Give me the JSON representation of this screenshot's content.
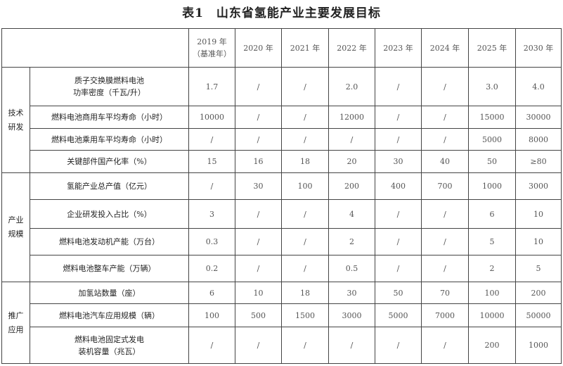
{
  "title": "表1　山东省氢能产业主要发展目标",
  "header": {
    "years": [
      "2019 年\n（基准年）",
      "2020 年",
      "2021 年",
      "2022 年",
      "2023 年",
      "2024 年",
      "2025 年",
      "2030 年"
    ]
  },
  "groups": [
    {
      "label": "技术\n研发",
      "rows": [
        {
          "name": "质子交换膜燃料电池\n功率密度（千瓦/升）",
          "values": [
            "1.7",
            "/",
            "/",
            "2.0",
            "/",
            "/",
            "3.0",
            "4.0"
          ]
        },
        {
          "name": "燃料电池商用车平均寿命（小时）",
          "values": [
            "10000",
            "/",
            "/",
            "12000",
            "/",
            "/",
            "15000",
            "30000"
          ]
        },
        {
          "name": "燃料电池乘用车平均寿命（小时）",
          "values": [
            "/",
            "/",
            "/",
            "/",
            "/",
            "/",
            "5000",
            "8000"
          ]
        },
        {
          "name": "关键部件国产化率（%）",
          "values": [
            "15",
            "16",
            "18",
            "20",
            "30",
            "40",
            "50",
            "≥80"
          ]
        }
      ]
    },
    {
      "label": "产业\n规模",
      "rows": [
        {
          "name": "氢能产业总产值（亿元）",
          "values": [
            "/",
            "30",
            "100",
            "200",
            "400",
            "700",
            "1000",
            "3000"
          ]
        },
        {
          "name": "企业研发投入占比（%）",
          "values": [
            "3",
            "/",
            "/",
            "4",
            "/",
            "/",
            "6",
            "10"
          ]
        },
        {
          "name": "燃料电池发动机产能（万台）",
          "values": [
            "0.3",
            "/",
            "/",
            "2",
            "/",
            "/",
            "5",
            "10"
          ]
        },
        {
          "name": "燃料电池整车产能（万辆）",
          "values": [
            "0.2",
            "/",
            "/",
            "0.5",
            "/",
            "/",
            "2",
            "5"
          ]
        }
      ]
    },
    {
      "label": "推广\n应用",
      "rows": [
        {
          "name": "加氢站数量（座）",
          "values": [
            "6",
            "10",
            "18",
            "30",
            "50",
            "70",
            "100",
            "200"
          ]
        },
        {
          "name": "燃料电池汽车应用规模（辆）",
          "values": [
            "100",
            "500",
            "1500",
            "3000",
            "5000",
            "7000",
            "10000",
            "50000"
          ]
        },
        {
          "name": "燃料电池固定式发电\n装机容量（兆瓦）",
          "values": [
            "/",
            "/",
            "/",
            "/",
            "/",
            "/",
            "200",
            "1000"
          ]
        }
      ]
    }
  ]
}
